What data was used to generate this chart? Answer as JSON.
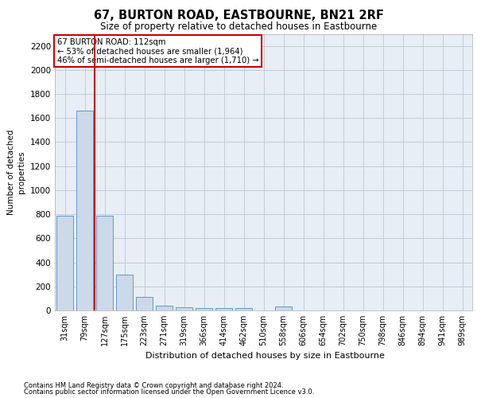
{
  "title": "67, BURTON ROAD, EASTBOURNE, BN21 2RF",
  "subtitle": "Size of property relative to detached houses in Eastbourne",
  "xlabel": "Distribution of detached houses by size in Eastbourne",
  "ylabel": "Number of detached\nproperties",
  "footer1": "Contains HM Land Registry data © Crown copyright and database right 2024.",
  "footer2": "Contains public sector information licensed under the Open Government Licence v3.0.",
  "annotation_title": "67 BURTON ROAD: 112sqm",
  "annotation_line1": "← 53% of detached houses are smaller (1,964)",
  "annotation_line2": "46% of semi-detached houses are larger (1,710) →",
  "property_size": 112,
  "categories": [
    "31sqm",
    "79sqm",
    "127sqm",
    "175sqm",
    "223sqm",
    "271sqm",
    "319sqm",
    "366sqm",
    "414sqm",
    "462sqm",
    "510sqm",
    "558sqm",
    "606sqm",
    "654sqm",
    "702sqm",
    "750sqm",
    "798sqm",
    "846sqm",
    "894sqm",
    "941sqm",
    "989sqm"
  ],
  "values": [
    790,
    1660,
    790,
    300,
    110,
    38,
    28,
    20,
    20,
    20,
    0,
    30,
    0,
    0,
    0,
    0,
    0,
    0,
    0,
    0,
    0
  ],
  "bar_color": "#ccd9e8",
  "bar_edge_color": "#5b9bd5",
  "red_line_color": "#cc0000",
  "annotation_box_color": "#cc0000",
  "grid_color": "#c0ccd8",
  "background_color": "#e8eef5",
  "ylim": [
    0,
    2300
  ],
  "yticks": [
    0,
    200,
    400,
    600,
    800,
    1000,
    1200,
    1400,
    1600,
    1800,
    2000,
    2200
  ]
}
